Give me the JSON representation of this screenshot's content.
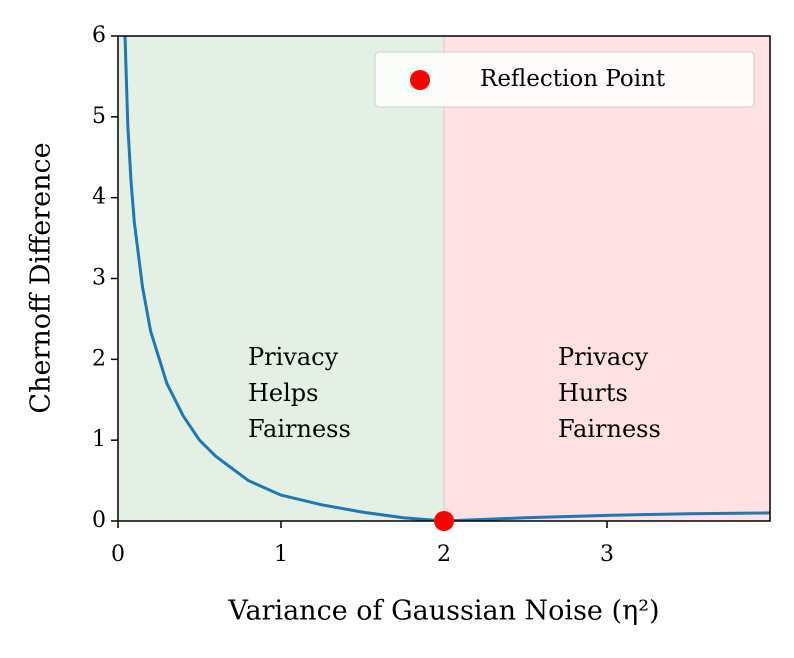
{
  "chart_data": {
    "type": "line",
    "xlabel": "Variance of Gaussian Noise (η²)",
    "ylabel": "Chernoff Difference",
    "xlim": [
      0,
      4
    ],
    "ylim": [
      0,
      6
    ],
    "xticks": [
      0,
      1,
      2,
      3
    ],
    "yticks": [
      0,
      1,
      2,
      3,
      4,
      5,
      6
    ],
    "regions": [
      {
        "x": [
          0,
          2
        ],
        "color": "#e5f0e5",
        "label": [
          "Privacy",
          "Helps",
          "Fairness"
        ]
      },
      {
        "x": [
          2,
          4
        ],
        "color": "#ffe0e3",
        "label": [
          "Privacy",
          "Hurts",
          "Fairness"
        ]
      }
    ],
    "series": [
      {
        "color": "#1f77b4",
        "x": [
          0.043,
          0.06,
          0.08,
          0.1,
          0.15,
          0.2,
          0.3,
          0.4,
          0.5,
          0.6,
          0.8,
          1.0,
          1.25,
          1.5,
          1.75,
          2.0,
          2.5,
          3.0,
          3.5,
          4.0
        ],
        "values": [
          6.0,
          4.9,
          4.2,
          3.7,
          2.9,
          2.35,
          1.7,
          1.3,
          1.0,
          0.8,
          0.5,
          0.32,
          0.2,
          0.11,
          0.04,
          0.0,
          0.04,
          0.07,
          0.09,
          0.1
        ]
      }
    ],
    "points": {
      "name": "Reflection Point",
      "color": "#ff0000",
      "x": [
        2
      ],
      "values": [
        0
      ]
    },
    "legend": "upper right"
  }
}
